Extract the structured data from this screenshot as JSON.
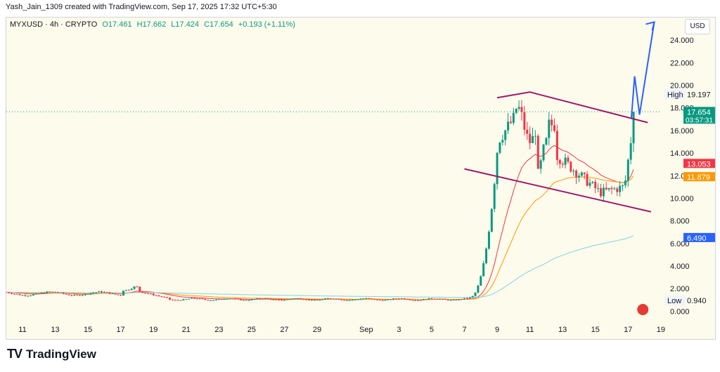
{
  "header": {
    "creator_line": "Yash_Jain_1309 created with TradingView.com, Sep 17, 2025 17:32 UTC+5:30"
  },
  "legend": {
    "symbol": "MYXUSD · 4h · CRYPTO",
    "open": "O17.461",
    "high": "H17.662",
    "low": "L17.424",
    "close": "C17.654",
    "change": "+0.193 (+1.11%)"
  },
  "currency_button": "USD",
  "footer": {
    "brand": "TradingView"
  },
  "colors": {
    "up": "#089981",
    "down": "#f23645",
    "ema_fast": "#f23645",
    "ema_slow": "#ff9800",
    "ema_long": "#7fd3e6",
    "channel": "#9c1a6b",
    "projection": "#2962ff",
    "background": "#fdfbec"
  },
  "chart_data": {
    "type": "candlestick",
    "symbol": "MYXUSD",
    "timeframe": "4h",
    "y_axis": {
      "range": [
        -0.6,
        26
      ],
      "ticks": [
        "0.000",
        "2.000",
        "4.000",
        "6.000",
        "8.000",
        "10.000",
        "12.000",
        "14.000",
        "16.000",
        "18.000",
        "20.000",
        "22.000",
        "24.000"
      ]
    },
    "x_axis": {
      "range_days": [
        10,
        20
      ],
      "ticks": [
        {
          "label": "11",
          "day": 11
        },
        {
          "label": "13",
          "day": 13
        },
        {
          "label": "15",
          "day": 15
        },
        {
          "label": "17",
          "day": 17
        },
        {
          "label": "19",
          "day": 19
        },
        {
          "label": "21",
          "day": 21
        },
        {
          "label": "23",
          "day": 23
        },
        {
          "label": "25",
          "day": 25
        },
        {
          "label": "27",
          "day": 27
        },
        {
          "label": "29",
          "day": 29
        },
        {
          "label": "Sep",
          "day": 32
        },
        {
          "label": "3",
          "day": 34
        },
        {
          "label": "5",
          "day": 36
        },
        {
          "label": "7",
          "day": 38
        },
        {
          "label": "9",
          "day": 40
        },
        {
          "label": "11",
          "day": 42
        },
        {
          "label": "13",
          "day": 44
        },
        {
          "label": "15",
          "day": 46
        },
        {
          "label": "17",
          "day": 48
        },
        {
          "label": "19",
          "day": 50
        }
      ]
    },
    "price_labels": [
      {
        "label": "High",
        "value": "19.197",
        "y": 19.197,
        "style": "plain"
      },
      {
        "label": "",
        "value": "17.654",
        "sub": "03:57:31",
        "y": 17.654,
        "style": "green"
      },
      {
        "label": "",
        "value": "13.053",
        "y": 13.053,
        "style": "red"
      },
      {
        "label": "",
        "value": "11.879",
        "y": 11.879,
        "style": "orange"
      },
      {
        "label": "",
        "value": "6.490",
        "y": 6.49,
        "style": "blue"
      },
      {
        "label": "Low",
        "value": "0.940",
        "y": 0.94,
        "style": "plain"
      }
    ],
    "current_price": 17.654,
    "candles_by_phase": [
      {
        "from_day": 10,
        "to_day": 17,
        "approx": 1.6
      },
      {
        "from_day": 17,
        "to_day": 18,
        "approx": 2.1
      },
      {
        "from_day": 18,
        "to_day": 38,
        "approx": 1.1
      },
      {
        "from_day": 38,
        "to_day": 40,
        "approx": "rally 1.2 → 10"
      },
      {
        "from_day": 40,
        "to_day": 42.5,
        "approx": "16–19"
      },
      {
        "from_day": 42.5,
        "to_day": 46.5,
        "approx": "decline to 10–11"
      },
      {
        "from_day": 46.5,
        "to_day": 48.4,
        "approx": "breakout to 17.654"
      }
    ],
    "channel_upper": [
      [
        40,
        18.9
      ],
      [
        42,
        19.4
      ],
      [
        49.2,
        16.7
      ]
    ],
    "channel_lower": [
      [
        38,
        12.6
      ],
      [
        49.4,
        8.8
      ]
    ],
    "projection": [
      [
        48.2,
        17.1
      ],
      [
        48.4,
        20.8
      ],
      [
        48.7,
        17.4
      ],
      [
        49.6,
        25.6
      ]
    ]
  }
}
